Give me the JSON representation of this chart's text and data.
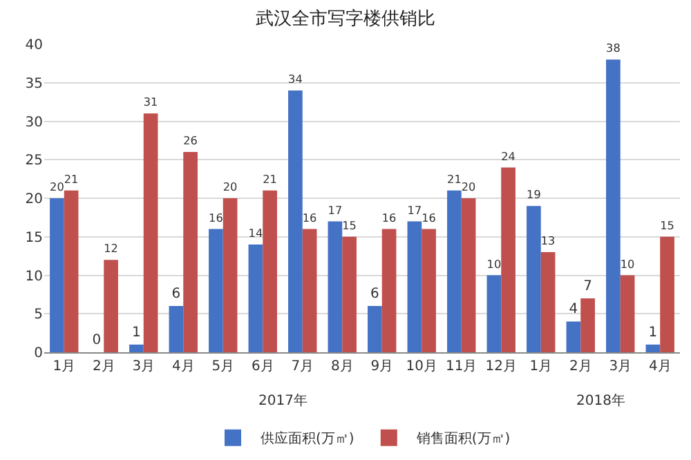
{
  "chart_data": {
    "type": "bar",
    "title": "武汉全市写字楼供销比",
    "categories": [
      "1月",
      "2月",
      "3月",
      "4月",
      "5月",
      "6月",
      "7月",
      "8月",
      "9月",
      "10月",
      "11月",
      "12月",
      "1月",
      "2月",
      "3月",
      "4月"
    ],
    "series": [
      {
        "name": "供应面积(万㎡)",
        "color": "#4472c4",
        "values": [
          20,
          0,
          1,
          6,
          16,
          14,
          34,
          17,
          6,
          17,
          21,
          10,
          19,
          4,
          38,
          1
        ]
      },
      {
        "name": "销售面积(万㎡)",
        "color": "#c0504d",
        "values": [
          21,
          12,
          31,
          26,
          20,
          21,
          16,
          15,
          16,
          16,
          20,
          24,
          13,
          7,
          10,
          15
        ]
      }
    ],
    "annotations": [
      "2017年",
      "2018年"
    ],
    "ylim": [
      0,
      40
    ],
    "yticks": [
      0,
      5,
      10,
      15,
      20,
      25,
      30,
      35,
      40
    ],
    "grid": "y",
    "legend": "bottom",
    "data_labels": true
  }
}
